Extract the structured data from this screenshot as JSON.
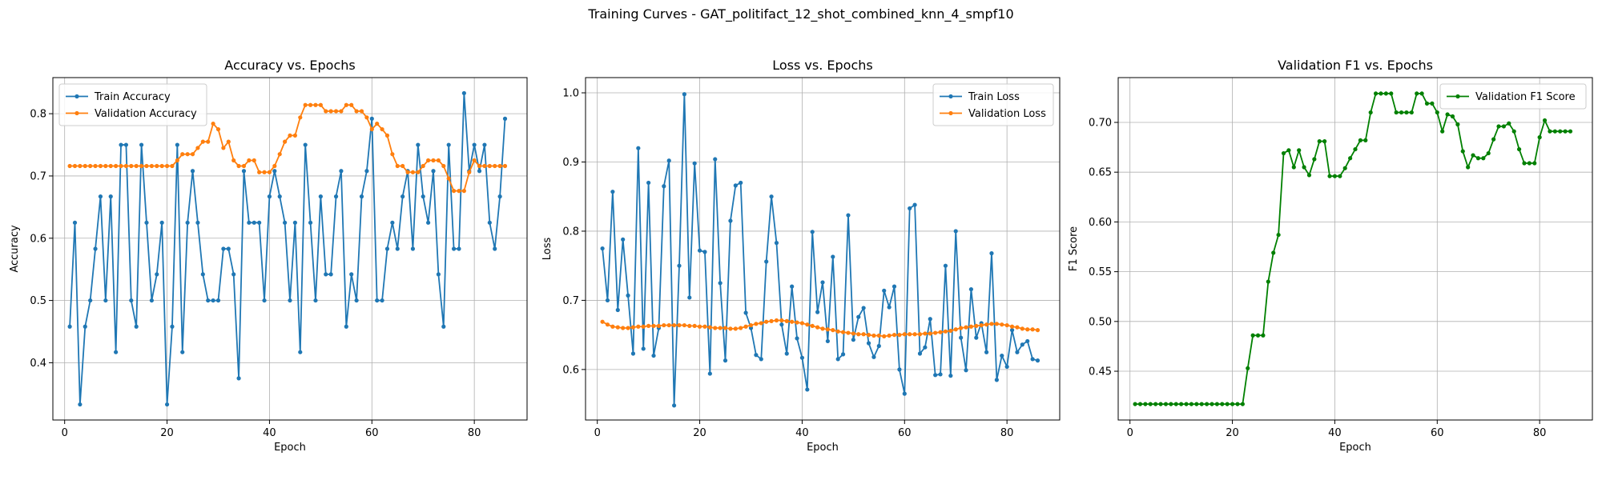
{
  "figure": {
    "suptitle": "Training Curves - GAT_politifact_12_shot_combined_knn_4_smpf10"
  },
  "chart_data": [
    {
      "type": "line",
      "title": "Accuracy vs. Epochs",
      "xlabel": "Epoch",
      "ylabel": "Accuracy",
      "xlim": [
        -2.3,
        90.3
      ],
      "ylim": [
        0.308,
        0.858
      ],
      "xticks": [
        0,
        20,
        40,
        60,
        80
      ],
      "yticks": [
        0.4,
        0.5,
        0.6,
        0.7,
        0.8
      ],
      "ytick_labels": [
        "0.4",
        "0.5",
        "0.6",
        "0.7",
        "0.8"
      ],
      "grid": true,
      "legend_position": "upper left",
      "x": [
        1,
        2,
        3,
        4,
        5,
        6,
        7,
        8,
        9,
        10,
        11,
        12,
        13,
        14,
        15,
        16,
        17,
        18,
        19,
        20,
        21,
        22,
        23,
        24,
        25,
        26,
        27,
        28,
        29,
        30,
        31,
        32,
        33,
        34,
        35,
        36,
        37,
        38,
        39,
        40,
        41,
        42,
        43,
        44,
        45,
        46,
        47,
        48,
        49,
        50,
        51,
        52,
        53,
        54,
        55,
        56,
        57,
        58,
        59,
        60,
        61,
        62,
        63,
        64,
        65,
        66,
        67,
        68,
        69,
        70,
        71,
        72,
        73,
        74,
        75,
        76,
        77,
        78,
        79,
        80,
        81,
        82,
        83,
        84,
        85,
        86
      ],
      "series": [
        {
          "name": "Train Accuracy",
          "color": "#1f77b4",
          "values": [
            0.458,
            0.625,
            0.333,
            0.458,
            0.5,
            0.583,
            0.667,
            0.5,
            0.667,
            0.417,
            0.75,
            0.75,
            0.5,
            0.458,
            0.75,
            0.625,
            0.5,
            0.542,
            0.625,
            0.333,
            0.458,
            0.75,
            0.417,
            0.625,
            0.708,
            0.625,
            0.542,
            0.5,
            0.5,
            0.5,
            0.583,
            0.583,
            0.542,
            0.375,
            0.708,
            0.625,
            0.625,
            0.625,
            0.5,
            0.667,
            0.708,
            0.667,
            0.625,
            0.5,
            0.625,
            0.417,
            0.75,
            0.625,
            0.5,
            0.667,
            0.542,
            0.542,
            0.667,
            0.708,
            0.458,
            0.542,
            0.5,
            0.667,
            0.708,
            0.792,
            0.5,
            0.5,
            0.583,
            0.625,
            0.583,
            0.667,
            0.708,
            0.583,
            0.75,
            0.667,
            0.625,
            0.708,
            0.542,
            0.458,
            0.75,
            0.583,
            0.583,
            0.833,
            0.708,
            0.75,
            0.708,
            0.75,
            0.625,
            0.583,
            0.667,
            0.792
          ]
        },
        {
          "name": "Validation Accuracy",
          "color": "#ff7f0e",
          "values": [
            0.716,
            0.716,
            0.716,
            0.716,
            0.716,
            0.716,
            0.716,
            0.716,
            0.716,
            0.716,
            0.716,
            0.716,
            0.716,
            0.716,
            0.716,
            0.716,
            0.716,
            0.716,
            0.716,
            0.716,
            0.716,
            0.725,
            0.735,
            0.735,
            0.735,
            0.745,
            0.755,
            0.755,
            0.784,
            0.775,
            0.745,
            0.755,
            0.725,
            0.716,
            0.716,
            0.725,
            0.725,
            0.706,
            0.706,
            0.706,
            0.716,
            0.735,
            0.755,
            0.765,
            0.765,
            0.794,
            0.814,
            0.814,
            0.814,
            0.814,
            0.804,
            0.804,
            0.804,
            0.804,
            0.814,
            0.814,
            0.804,
            0.804,
            0.794,
            0.775,
            0.784,
            0.775,
            0.765,
            0.735,
            0.716,
            0.716,
            0.706,
            0.706,
            0.706,
            0.716,
            0.725,
            0.725,
            0.725,
            0.716,
            0.696,
            0.676,
            0.676,
            0.676,
            0.706,
            0.725,
            0.716,
            0.716,
            0.716,
            0.716,
            0.716,
            0.716
          ]
        }
      ]
    },
    {
      "type": "line",
      "title": "Loss vs. Epochs",
      "xlabel": "Epoch",
      "ylabel": "Loss",
      "xlim": [
        -2.3,
        90.3
      ],
      "ylim": [
        0.527,
        1.022
      ],
      "xticks": [
        0,
        20,
        40,
        60,
        80
      ],
      "yticks": [
        0.6,
        0.7,
        0.8,
        0.9,
        1.0
      ],
      "ytick_labels": [
        "0.6",
        "0.7",
        "0.8",
        "0.9",
        "1.0"
      ],
      "grid": true,
      "legend_position": "upper right",
      "x": [
        1,
        2,
        3,
        4,
        5,
        6,
        7,
        8,
        9,
        10,
        11,
        12,
        13,
        14,
        15,
        16,
        17,
        18,
        19,
        20,
        21,
        22,
        23,
        24,
        25,
        26,
        27,
        28,
        29,
        30,
        31,
        32,
        33,
        34,
        35,
        36,
        37,
        38,
        39,
        40,
        41,
        42,
        43,
        44,
        45,
        46,
        47,
        48,
        49,
        50,
        51,
        52,
        53,
        54,
        55,
        56,
        57,
        58,
        59,
        60,
        61,
        62,
        63,
        64,
        65,
        66,
        67,
        68,
        69,
        70,
        71,
        72,
        73,
        74,
        75,
        76,
        77,
        78,
        79,
        80,
        81,
        82,
        83,
        84,
        85,
        86
      ],
      "series": [
        {
          "name": "Train Loss",
          "color": "#1f77b4",
          "values": [
            0.775,
            0.7,
            0.857,
            0.686,
            0.788,
            0.707,
            0.623,
            0.92,
            0.63,
            0.87,
            0.62,
            0.66,
            0.865,
            0.902,
            0.548,
            0.75,
            0.998,
            0.704,
            0.898,
            0.772,
            0.77,
            0.594,
            0.904,
            0.725,
            0.613,
            0.815,
            0.866,
            0.87,
            0.682,
            0.66,
            0.621,
            0.615,
            0.756,
            0.85,
            0.783,
            0.665,
            0.623,
            0.72,
            0.645,
            0.617,
            0.571,
            0.799,
            0.683,
            0.726,
            0.641,
            0.763,
            0.615,
            0.622,
            0.823,
            0.643,
            0.676,
            0.689,
            0.638,
            0.618,
            0.634,
            0.714,
            0.69,
            0.72,
            0.6,
            0.565,
            0.833,
            0.838,
            0.623,
            0.632,
            0.673,
            0.592,
            0.593,
            0.75,
            0.591,
            0.8,
            0.646,
            0.599,
            0.716,
            0.646,
            0.667,
            0.625,
            0.768,
            0.585,
            0.62,
            0.604,
            0.657,
            0.625,
            0.636,
            0.641,
            0.615,
            0.613
          ]
        },
        {
          "name": "Validation Loss",
          "color": "#ff7f0e",
          "values": [
            0.669,
            0.665,
            0.662,
            0.661,
            0.66,
            0.66,
            0.661,
            0.662,
            0.662,
            0.663,
            0.663,
            0.663,
            0.664,
            0.664,
            0.664,
            0.664,
            0.664,
            0.663,
            0.663,
            0.662,
            0.662,
            0.661,
            0.66,
            0.66,
            0.66,
            0.659,
            0.659,
            0.66,
            0.662,
            0.664,
            0.666,
            0.667,
            0.669,
            0.67,
            0.671,
            0.671,
            0.67,
            0.669,
            0.668,
            0.667,
            0.665,
            0.663,
            0.661,
            0.659,
            0.658,
            0.657,
            0.655,
            0.654,
            0.653,
            0.652,
            0.651,
            0.651,
            0.65,
            0.649,
            0.649,
            0.648,
            0.649,
            0.65,
            0.65,
            0.651,
            0.651,
            0.651,
            0.651,
            0.652,
            0.652,
            0.653,
            0.654,
            0.655,
            0.656,
            0.658,
            0.66,
            0.661,
            0.662,
            0.663,
            0.664,
            0.665,
            0.666,
            0.666,
            0.665,
            0.664,
            0.662,
            0.661,
            0.659,
            0.658,
            0.658,
            0.657
          ]
        }
      ]
    },
    {
      "type": "line",
      "title": "Validation F1 vs. Epochs",
      "xlabel": "Epoch",
      "ylabel": "F1 Score",
      "xlim": [
        -2.3,
        90.3
      ],
      "ylim": [
        0.401,
        0.745
      ],
      "xticks": [
        0,
        20,
        40,
        60,
        80
      ],
      "yticks": [
        0.45,
        0.5,
        0.55,
        0.6,
        0.65,
        0.7
      ],
      "ytick_labels": [
        "0.45",
        "0.50",
        "0.55",
        "0.60",
        "0.65",
        "0.70"
      ],
      "grid": true,
      "legend_position": "upper right",
      "x": [
        1,
        2,
        3,
        4,
        5,
        6,
        7,
        8,
        9,
        10,
        11,
        12,
        13,
        14,
        15,
        16,
        17,
        18,
        19,
        20,
        21,
        22,
        23,
        24,
        25,
        26,
        27,
        28,
        29,
        30,
        31,
        32,
        33,
        34,
        35,
        36,
        37,
        38,
        39,
        40,
        41,
        42,
        43,
        44,
        45,
        46,
        47,
        48,
        49,
        50,
        51,
        52,
        53,
        54,
        55,
        56,
        57,
        58,
        59,
        60,
        61,
        62,
        63,
        64,
        65,
        66,
        67,
        68,
        69,
        70,
        71,
        72,
        73,
        74,
        75,
        76,
        77,
        78,
        79,
        80,
        81,
        82,
        83,
        84,
        85,
        86
      ],
      "series": [
        {
          "name": "Validation F1 Score",
          "color": "#008000",
          "values": [
            0.417,
            0.417,
            0.417,
            0.417,
            0.417,
            0.417,
            0.417,
            0.417,
            0.417,
            0.417,
            0.417,
            0.417,
            0.417,
            0.417,
            0.417,
            0.417,
            0.417,
            0.417,
            0.417,
            0.417,
            0.417,
            0.417,
            0.453,
            0.486,
            0.486,
            0.486,
            0.54,
            0.569,
            0.587,
            0.669,
            0.672,
            0.655,
            0.672,
            0.655,
            0.647,
            0.663,
            0.681,
            0.681,
            0.646,
            0.646,
            0.646,
            0.654,
            0.664,
            0.673,
            0.682,
            0.682,
            0.71,
            0.729,
            0.729,
            0.729,
            0.729,
            0.71,
            0.71,
            0.71,
            0.71,
            0.729,
            0.729,
            0.719,
            0.719,
            0.71,
            0.691,
            0.708,
            0.706,
            0.698,
            0.671,
            0.655,
            0.667,
            0.664,
            0.664,
            0.669,
            0.683,
            0.696,
            0.696,
            0.699,
            0.691,
            0.673,
            0.659,
            0.659,
            0.659,
            0.685,
            0.702,
            0.691,
            0.691,
            0.691,
            0.691,
            0.691
          ]
        }
      ]
    }
  ]
}
